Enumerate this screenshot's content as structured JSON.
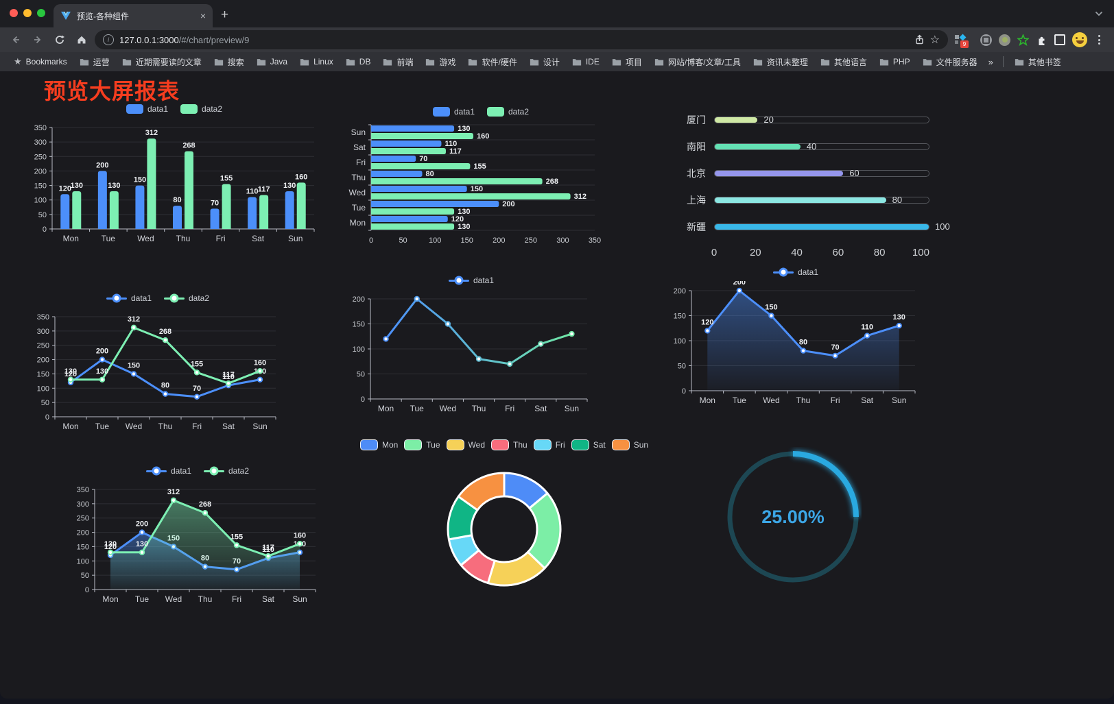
{
  "browser": {
    "tab_title": "预览-各种组件",
    "new_tab_label": "+",
    "tab_close_label": "×",
    "url_host": "127.0.0.1:3000",
    "url_path": "/#/chart/preview/9",
    "info_glyph": "i",
    "star_glyph": "☆",
    "extension_badge": "9",
    "bookmarks_label": "Bookmarks",
    "bookmark_items": [
      "运营",
      "近期需要读的文章",
      "搜索",
      "Java",
      "Linux",
      "DB",
      "前端",
      "游戏",
      "软件/硬件",
      "设计",
      "IDE",
      "项目",
      "网站/博客/文章/工具",
      "资讯未整理",
      "其他语言",
      "PHP",
      "文件服务器"
    ],
    "overflow_label": "»",
    "other_bookmarks_label": "其他书签"
  },
  "page": {
    "title": "预览大屏报表",
    "title_color": "#f63d1f"
  },
  "chart_data": [
    {
      "id": "bar-vertical",
      "type": "bar",
      "categories": [
        "Mon",
        "Tue",
        "Wed",
        "Thu",
        "Fri",
        "Sat",
        "Sun"
      ],
      "series": [
        {
          "name": "data1",
          "color": "#4c8ffa",
          "values": [
            120,
            200,
            150,
            80,
            70,
            110,
            130
          ]
        },
        {
          "name": "data2",
          "color": "#7defb3",
          "values": [
            130,
            130,
            312,
            268,
            155,
            117,
            160
          ]
        }
      ],
      "ylim": [
        0,
        350
      ],
      "ystep": 50,
      "grid": true,
      "legend_position": "top",
      "value_labels": true
    },
    {
      "id": "bar-horizontal",
      "type": "bar-horizontal",
      "categories": [
        "Mon",
        "Tue",
        "Wed",
        "Thu",
        "Fri",
        "Sat",
        "Sun"
      ],
      "series": [
        {
          "name": "data1",
          "color": "#4c8ffa",
          "values": [
            120,
            200,
            150,
            80,
            70,
            110,
            130
          ]
        },
        {
          "name": "data2",
          "color": "#7defb3",
          "values": [
            130,
            130,
            312,
            268,
            155,
            117,
            160
          ]
        }
      ],
      "xlim": [
        0,
        350
      ],
      "xstep": 50,
      "grid": true,
      "legend_position": "top",
      "value_labels": true
    },
    {
      "id": "city-progress",
      "type": "progress-bars",
      "max": 100,
      "items": [
        {
          "label": "厦门",
          "value": 20,
          "color": "#cfe8a5"
        },
        {
          "label": "南阳",
          "value": 40,
          "color": "#64e1b4"
        },
        {
          "label": "北京",
          "value": 60,
          "color": "#9596ec"
        },
        {
          "label": "上海",
          "value": 80,
          "color": "#8ce7e3"
        },
        {
          "label": "新疆",
          "value": 100,
          "color": "#39b8e9"
        }
      ],
      "xticks": [
        0,
        20,
        40,
        60,
        80,
        100
      ]
    },
    {
      "id": "line-two-series",
      "type": "line",
      "categories": [
        "Mon",
        "Tue",
        "Wed",
        "Thu",
        "Fri",
        "Sat",
        "Sun"
      ],
      "series": [
        {
          "name": "data1",
          "color": "#4c8ffa",
          "values": [
            120,
            200,
            150,
            80,
            70,
            110,
            130
          ]
        },
        {
          "name": "data2",
          "color": "#7defb3",
          "values": [
            130,
            130,
            312,
            268,
            155,
            117,
            160
          ]
        }
      ],
      "ylim": [
        0,
        350
      ],
      "ystep": 50,
      "grid": true,
      "legend_position": "top",
      "value_labels": true
    },
    {
      "id": "line-gradient",
      "type": "line",
      "categories": [
        "Mon",
        "Tue",
        "Wed",
        "Thu",
        "Fri",
        "Sat",
        "Sun"
      ],
      "series": [
        {
          "name": "data1",
          "color": "#4c8ffa",
          "gradient": [
            "#4c8ffa",
            "#70e6a5"
          ],
          "values": [
            120,
            200,
            150,
            80,
            70,
            110,
            130
          ]
        }
      ],
      "ylim": [
        0,
        200
      ],
      "ystep": 50,
      "grid": true,
      "legend_position": "top",
      "value_labels": false
    },
    {
      "id": "area-single",
      "type": "line",
      "categories": [
        "Mon",
        "Tue",
        "Wed",
        "Thu",
        "Fri",
        "Sat",
        "Sun"
      ],
      "series": [
        {
          "name": "data1",
          "color": "#4c8ffa",
          "area": true,
          "values": [
            120,
            200,
            150,
            80,
            70,
            110,
            130
          ]
        }
      ],
      "ylim": [
        0,
        200
      ],
      "ystep": 50,
      "grid": true,
      "legend_position": "top",
      "value_labels": true
    },
    {
      "id": "area-two-series",
      "type": "line",
      "categories": [
        "Mon",
        "Tue",
        "Wed",
        "Thu",
        "Fri",
        "Sat",
        "Sun"
      ],
      "series": [
        {
          "name": "data1",
          "color": "#4c8ffa",
          "area": true,
          "values": [
            120,
            200,
            150,
            80,
            70,
            110,
            130
          ]
        },
        {
          "name": "data2",
          "color": "#7defb3",
          "area": true,
          "values": [
            130,
            130,
            312,
            268,
            155,
            117,
            160
          ]
        }
      ],
      "ylim": [
        0,
        350
      ],
      "ystep": 50,
      "grid": true,
      "legend_position": "top",
      "value_labels": true
    },
    {
      "id": "weekday-donut",
      "type": "pie",
      "categories": [
        "Mon",
        "Tue",
        "Wed",
        "Thu",
        "Fri",
        "Sat",
        "Sun"
      ],
      "values": [
        120,
        200,
        150,
        80,
        70,
        110,
        130
      ],
      "colors": [
        "#4e8cf7",
        "#7ceea6",
        "#f6d158",
        "#f76d7d",
        "#67d8f7",
        "#10b585",
        "#f79141"
      ],
      "inner_radius_ratio": 0.585,
      "legend_position": "top"
    },
    {
      "id": "percent-gauge",
      "type": "gauge",
      "value": 25,
      "label": "25.00%",
      "color": "#2aa9e0",
      "track_color": "#1d4753"
    }
  ]
}
